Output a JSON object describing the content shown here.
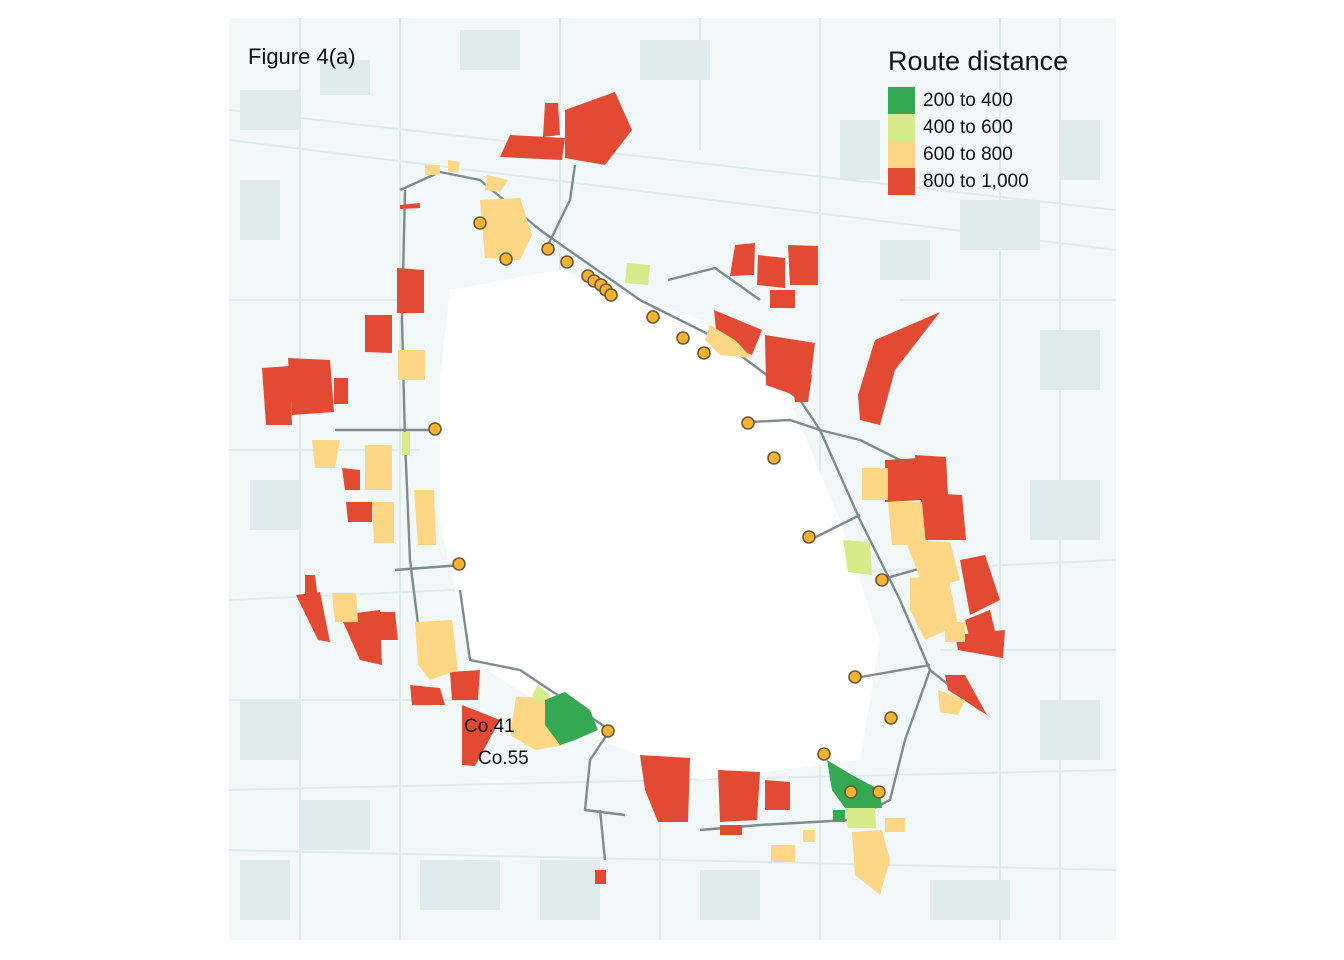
{
  "figure_label": "Figure 4(a)",
  "legend": {
    "title": "Route distance",
    "items": [
      {
        "label": "200 to 400",
        "color": "#35a853"
      },
      {
        "label": "400 to 600",
        "color": "#d8ea8a"
      },
      {
        "label": "600 to 800",
        "color": "#fdd686"
      },
      {
        "label": "800 to 1,000",
        "color": "#e24a33"
      }
    ]
  },
  "labels": {
    "company_a": "Co.41",
    "company_b": "Co.55"
  },
  "colors": {
    "background_streets": "#dfecec",
    "route_lines": "#7f8c8d",
    "stop_fill": "#f9b233",
    "stop_stroke": "#6b5a2e"
  }
}
